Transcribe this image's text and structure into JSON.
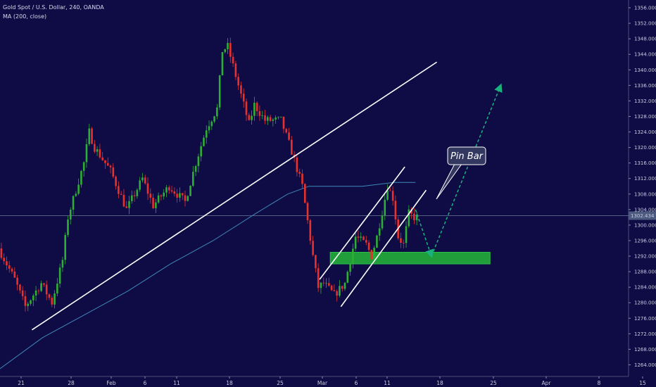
{
  "header": {
    "title": "Gold Spot / U.S. Dollar, 240, OANDA",
    "indicator": "MA (200, close)"
  },
  "colors": {
    "background": "#0f0c45",
    "up_candle": "#2eae34",
    "down_candle": "#e8302c",
    "ma_line": "#3f87b8",
    "trendline": "#ffffff",
    "projection": "#19b27c",
    "support_zone": "#1f9e3a",
    "price_line": "#6b7a99",
    "label_bg": "#333861"
  },
  "chart_data": {
    "type": "candlestick",
    "instrument": "Gold Spot / U.S. Dollar",
    "interval": "240",
    "x_ticks": [
      "21",
      "28",
      "Feb",
      "6",
      "11",
      "18",
      "25",
      "Mar",
      "6",
      "11",
      "18",
      "25",
      "Apr",
      "8",
      "15"
    ],
    "y_ticks": [
      1264,
      1268,
      1272,
      1276,
      1280,
      1284,
      1288,
      1292,
      1296,
      1300,
      1304,
      1308,
      1312,
      1316,
      1320,
      1324,
      1328,
      1332,
      1336,
      1340,
      1344,
      1348,
      1352,
      1356
    ],
    "ylim": [
      1261,
      1358
    ],
    "last_price": "1302.434",
    "annotation": "Pin Bar",
    "waypoints": [
      {
        "d": 0,
        "p": 1294
      },
      {
        "d": 3,
        "p": 1286
      },
      {
        "d": 5,
        "p": 1279
      },
      {
        "d": 8,
        "p": 1285
      },
      {
        "d": 10,
        "p": 1280
      },
      {
        "d": 12,
        "p": 1291
      },
      {
        "d": 13,
        "p": 1302
      },
      {
        "d": 16,
        "p": 1316
      },
      {
        "d": 17,
        "p": 1324
      },
      {
        "d": 18,
        "p": 1320
      },
      {
        "d": 21,
        "p": 1314
      },
      {
        "d": 24,
        "p": 1304
      },
      {
        "d": 27,
        "p": 1312
      },
      {
        "d": 29,
        "p": 1305
      },
      {
        "d": 32,
        "p": 1310
      },
      {
        "d": 35,
        "p": 1306
      },
      {
        "d": 37,
        "p": 1316
      },
      {
        "d": 39,
        "p": 1325
      },
      {
        "d": 41,
        "p": 1330
      },
      {
        "d": 42,
        "p": 1345
      },
      {
        "d": 43,
        "p": 1346
      },
      {
        "d": 45,
        "p": 1336
      },
      {
        "d": 47,
        "p": 1326
      },
      {
        "d": 48,
        "p": 1331
      },
      {
        "d": 50,
        "p": 1327
      },
      {
        "d": 53,
        "p": 1327
      },
      {
        "d": 55,
        "p": 1319
      },
      {
        "d": 57,
        "p": 1310
      },
      {
        "d": 59,
        "p": 1292
      },
      {
        "d": 60,
        "p": 1284
      },
      {
        "d": 61,
        "p": 1285
      },
      {
        "d": 63,
        "p": 1282
      },
      {
        "d": 65,
        "p": 1285
      },
      {
        "d": 67,
        "p": 1297
      },
      {
        "d": 69,
        "p": 1295
      },
      {
        "d": 70,
        "p": 1292
      },
      {
        "d": 71,
        "p": 1297
      },
      {
        "d": 73,
        "p": 1310
      },
      {
        "d": 74,
        "p": 1307
      },
      {
        "d": 75,
        "p": 1297
      },
      {
        "d": 76,
        "p": 1295
      },
      {
        "d": 77,
        "p": 1303
      },
      {
        "d": 78,
        "p": 1302
      }
    ],
    "moving_average": [
      {
        "d": 0,
        "p": 1263
      },
      {
        "d": 8,
        "p": 1271
      },
      {
        "d": 16,
        "p": 1277
      },
      {
        "d": 24,
        "p": 1283
      },
      {
        "d": 32,
        "p": 1290
      },
      {
        "d": 40,
        "p": 1296
      },
      {
        "d": 48,
        "p": 1303
      },
      {
        "d": 54,
        "p": 1308
      },
      {
        "d": 58,
        "p": 1310
      },
      {
        "d": 62,
        "p": 1310
      },
      {
        "d": 68,
        "p": 1310
      },
      {
        "d": 74,
        "p": 1311
      },
      {
        "d": 78,
        "p": 1311
      }
    ],
    "trendlines": [
      {
        "from": {
          "d": 6,
          "p": 1273
        },
        "to": {
          "d": 82,
          "p": 1342
        }
      },
      {
        "from": {
          "d": 60,
          "p": 1286
        },
        "to": {
          "d": 76,
          "p": 1315
        }
      },
      {
        "from": {
          "d": 64,
          "p": 1279
        },
        "to": {
          "d": 80,
          "p": 1309
        }
      }
    ],
    "support_zone": {
      "d_from": 62,
      "d_to": 92,
      "p_from": 1290,
      "p_to": 1293
    },
    "projection": [
      {
        "d": 78,
        "p": 1304
      },
      {
        "d": 81,
        "p": 1292
      },
      {
        "d": 94,
        "p": 1336
      }
    ]
  }
}
